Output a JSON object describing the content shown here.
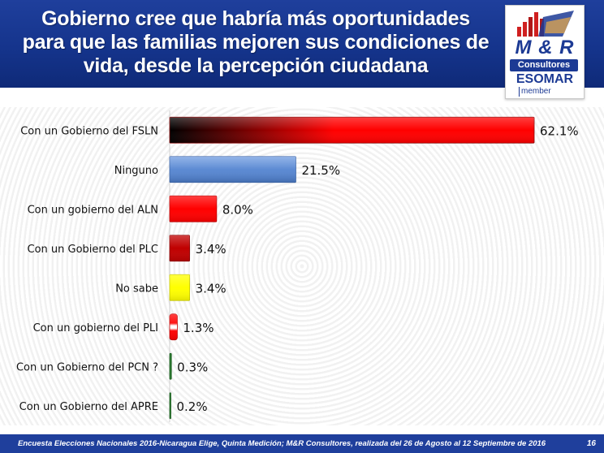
{
  "header": {
    "title_lines": [
      "Gobierno cree que habría más oportunidades",
      "para que las familias mejoren sus condiciones de",
      "vida, desde la percepción ciudadana"
    ]
  },
  "logo": {
    "brand": "M & R",
    "subtitle": "Consultores",
    "esomar": "ESOMAR",
    "member": "member"
  },
  "chart_data": {
    "type": "bar",
    "orientation": "horizontal",
    "categories": [
      "Con un Gobierno del FSLN",
      "Ninguno",
      "Con un gobierno del ALN",
      "Con un Gobierno del PLC",
      "No sabe",
      "Con un gobierno del PLI",
      "Con un Gobierno del PCN ?",
      "Con un Gobierno del APRE"
    ],
    "values": [
      62.1,
      21.5,
      8.0,
      3.4,
      3.4,
      1.3,
      0.3,
      0.2
    ],
    "value_labels": [
      "62.1%",
      "21.5%",
      "8.0%",
      "3.4%",
      "3.4%",
      "1.3%",
      "0.3%",
      "0.2%"
    ],
    "bar_styles": [
      "fsln",
      "blue",
      "red",
      "darkred",
      "yellow",
      "redstripe",
      "green",
      "green"
    ],
    "colors": {
      "fsln_dark": "#000000",
      "fsln_red": "#ff0000",
      "blue": "#5a8ad2",
      "red": "#ff0000",
      "darkred": "#c00000",
      "yellow": "#ffff00",
      "green": "#2e7d32",
      "value_text": "#111111"
    },
    "xlim": [
      0,
      62.1
    ],
    "grid": false
  },
  "footer": {
    "note": "Encuesta Elecciones Nacionales 2016-Nicaragua Elige, Quinta Medición; M&R Consultores, realizada del 26 de Agosto al 12 Septiembre de 2016",
    "page": "16"
  }
}
